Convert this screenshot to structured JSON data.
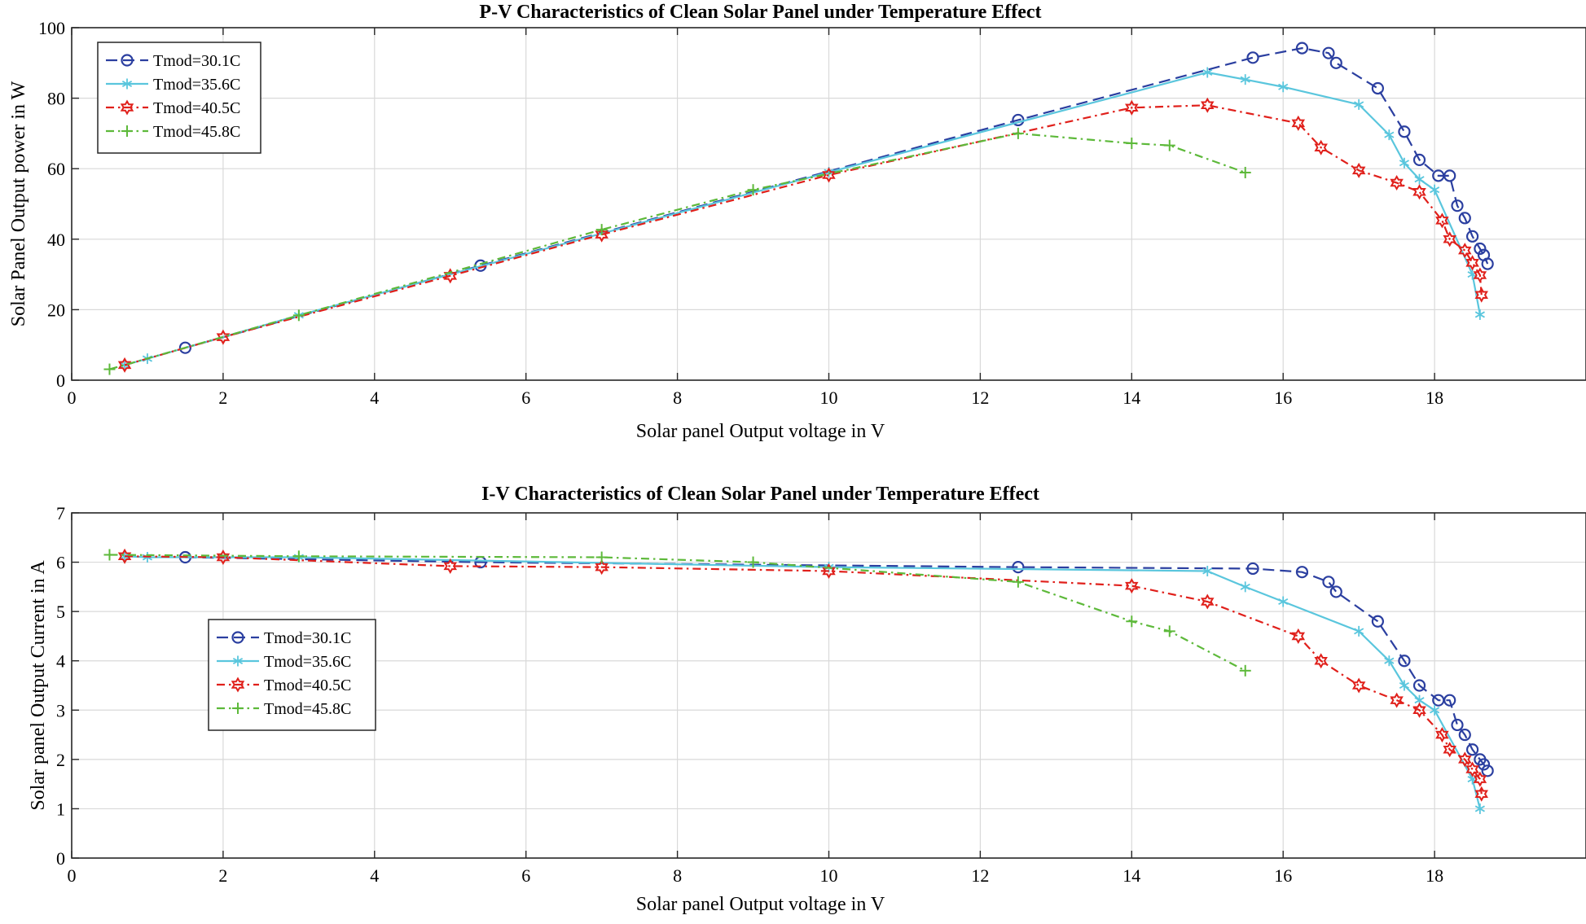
{
  "chart_data": [
    {
      "type": "line",
      "title": "P-V Characteristics of Clean Solar Panel under Temperature Effect",
      "xlabel": "Solar panel Output voltage in V",
      "ylabel": "Solar Panel Output power in W",
      "xlim": [
        0,
        20
      ],
      "ylim": [
        0,
        100
      ],
      "xticks": [
        0,
        2,
        4,
        6,
        8,
        10,
        12,
        14,
        16,
        18
      ],
      "yticks": [
        0,
        20,
        40,
        60,
        80,
        100
      ],
      "grid": true,
      "legend_position": "top-left",
      "series": [
        {
          "name": "Tmod=30.1C",
          "color": "#2b3fa0",
          "dash": "dashed",
          "marker": "circle",
          "x": [
            1.5,
            5.4,
            12.5,
            15.6,
            16.25,
            16.6,
            16.7,
            17.25,
            17.6,
            17.8,
            18.05,
            18.2,
            18.3,
            18.4,
            18.5,
            18.6,
            18.65,
            18.7
          ],
          "y": [
            9.2,
            32.5,
            73.8,
            91.5,
            94.2,
            92.8,
            90.0,
            82.8,
            70.5,
            62.5,
            58.0,
            58.0,
            49.5,
            46.0,
            40.8,
            37.3,
            35.5,
            33.0
          ]
        },
        {
          "name": "Tmod=35.6C",
          "color": "#5ac6dd",
          "dash": "solid",
          "marker": "star",
          "x": [
            0.7,
            1.0,
            3.0,
            10.0,
            15.0,
            15.5,
            16.0,
            17.0,
            17.4,
            17.6,
            17.8,
            18.0,
            18.5,
            18.6
          ],
          "y": [
            4.3,
            6.1,
            18.4,
            59.0,
            87.3,
            85.3,
            83.2,
            78.2,
            69.6,
            61.6,
            57.0,
            54.0,
            30.0,
            18.6
          ]
        },
        {
          "name": "Tmod=40.5C",
          "color": "#e0201b",
          "dash": "dashdot",
          "marker": "hexagram",
          "x": [
            0.7,
            2.0,
            5.0,
            7.0,
            10.0,
            14.0,
            15.0,
            16.2,
            16.5,
            17.0,
            17.5,
            17.8,
            18.1,
            18.2,
            18.4,
            18.5,
            18.6,
            18.62
          ],
          "y": [
            4.3,
            12.2,
            29.6,
            41.3,
            58.2,
            77.3,
            78.0,
            72.9,
            66.0,
            59.5,
            56.0,
            53.4,
            45.3,
            40.0,
            36.8,
            33.3,
            29.8,
            24.2
          ]
        },
        {
          "name": "Tmod=45.8C",
          "color": "#5db93a",
          "dash": "dashdot",
          "marker": "plus",
          "x": [
            0.5,
            3.0,
            7.0,
            9.0,
            12.5,
            14.0,
            14.5,
            15.5
          ],
          "y": [
            3.1,
            18.4,
            42.7,
            54.0,
            70.0,
            67.2,
            66.6,
            58.9
          ]
        }
      ]
    },
    {
      "type": "line",
      "title": "I-V Characteristics of Clean Solar Panel under Temperature Effect",
      "xlabel": "Solar panel Output voltage in V",
      "ylabel": "Solar panel Output Current in A",
      "xlim": [
        0,
        20
      ],
      "ylim": [
        0,
        7
      ],
      "xticks": [
        0,
        2,
        4,
        6,
        8,
        10,
        12,
        14,
        16,
        18
      ],
      "yticks": [
        0,
        1,
        2,
        3,
        4,
        5,
        6,
        7
      ],
      "grid": true,
      "legend_position": "center-left",
      "series": [
        {
          "name": "Tmod=30.1C",
          "color": "#2b3fa0",
          "dash": "dashed",
          "marker": "circle",
          "x": [
            1.5,
            5.4,
            12.5,
            15.6,
            16.25,
            16.6,
            16.7,
            17.25,
            17.6,
            17.8,
            18.05,
            18.2,
            18.3,
            18.4,
            18.5,
            18.6,
            18.65,
            18.7
          ],
          "y": [
            6.1,
            6.0,
            5.9,
            5.87,
            5.8,
            5.6,
            5.4,
            4.8,
            4.0,
            3.5,
            3.2,
            3.2,
            2.7,
            2.5,
            2.2,
            2.0,
            1.9,
            1.77
          ]
        },
        {
          "name": "Tmod=35.6C",
          "color": "#5ac6dd",
          "dash": "solid",
          "marker": "star",
          "x": [
            0.7,
            1.0,
            3.0,
            10.0,
            15.0,
            15.5,
            16.0,
            17.0,
            17.4,
            17.6,
            17.8,
            18.0,
            18.5,
            18.6
          ],
          "y": [
            6.12,
            6.1,
            6.1,
            5.9,
            5.82,
            5.5,
            5.2,
            4.6,
            4.0,
            3.5,
            3.2,
            3.0,
            1.6,
            1.0
          ]
        },
        {
          "name": "Tmod=40.5C",
          "color": "#e0201b",
          "dash": "dashdot",
          "marker": "hexagram",
          "x": [
            0.7,
            2.0,
            5.0,
            7.0,
            10.0,
            14.0,
            15.0,
            16.2,
            16.5,
            17.0,
            17.5,
            17.8,
            18.1,
            18.2,
            18.4,
            18.5,
            18.6,
            18.62
          ],
          "y": [
            6.12,
            6.1,
            5.92,
            5.9,
            5.82,
            5.52,
            5.2,
            4.5,
            4.0,
            3.5,
            3.2,
            3.0,
            2.5,
            2.2,
            2.0,
            1.8,
            1.6,
            1.3
          ]
        },
        {
          "name": "Tmod=45.8C",
          "color": "#5db93a",
          "dash": "dashdot",
          "marker": "plus",
          "x": [
            0.5,
            3.0,
            7.0,
            9.0,
            12.5,
            14.0,
            14.5,
            15.5
          ],
          "y": [
            6.15,
            6.12,
            6.1,
            6.0,
            5.6,
            4.8,
            4.6,
            3.8
          ]
        }
      ]
    }
  ]
}
